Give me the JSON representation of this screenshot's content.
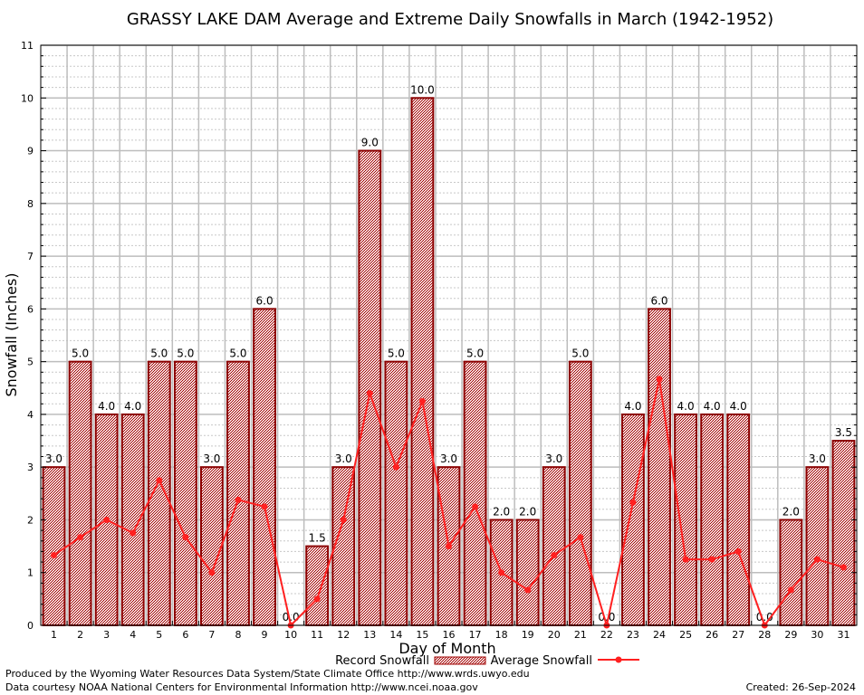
{
  "chart_data": {
    "type": "bar",
    "title": "GRASSY LAKE DAM Average and Extreme Daily Snowfalls in March (1942-1952)",
    "xlabel": "Day of Month",
    "ylabel": "Snowfall (Inches)",
    "ylim": [
      0,
      11
    ],
    "yticks": [
      "0",
      "1",
      "2",
      "3",
      "4",
      "5",
      "6",
      "7",
      "8",
      "9",
      "10",
      "11"
    ],
    "grid": true,
    "legend_placement": "bottom",
    "categories": [
      "1",
      "2",
      "3",
      "4",
      "5",
      "6",
      "7",
      "8",
      "9",
      "10",
      "11",
      "12",
      "13",
      "14",
      "15",
      "16",
      "17",
      "18",
      "19",
      "20",
      "21",
      "22",
      "23",
      "24",
      "25",
      "26",
      "27",
      "28",
      "29",
      "30",
      "31"
    ],
    "series": [
      {
        "name": "Record Snowfall",
        "kind": "bar",
        "color": "#b00000",
        "values": [
          3.0,
          5.0,
          4.0,
          4.0,
          5.0,
          5.0,
          3.0,
          5.0,
          6.0,
          0.0,
          1.5,
          3.0,
          9.0,
          5.0,
          10.0,
          3.0,
          5.0,
          2.0,
          2.0,
          3.0,
          5.0,
          0.0,
          4.0,
          6.0,
          4.0,
          4.0,
          4.0,
          0.0,
          2.0,
          3.0,
          3.5
        ],
        "labels": [
          "3.0",
          "5.0",
          "4.0",
          "4.0",
          "5.0",
          "5.0",
          "3.0",
          "5.0",
          "6.0",
          "0.0",
          "1.5",
          "3.0",
          "9.0",
          "5.0",
          "10.0",
          "3.0",
          "5.0",
          "2.0",
          "2.0",
          "3.0",
          "5.0",
          "0.0",
          "4.0",
          "6.0",
          "4.0",
          "4.0",
          "4.0",
          "0.0",
          "2.0",
          "3.0",
          "3.5"
        ]
      },
      {
        "name": "Average Snowfall",
        "kind": "line",
        "color": "#ff2020",
        "values": [
          1.33,
          1.67,
          2.0,
          1.75,
          2.75,
          1.67,
          1.0,
          2.38,
          2.25,
          0.0,
          0.5,
          2.0,
          4.4,
          3.0,
          4.25,
          1.5,
          2.25,
          1.0,
          0.67,
          1.33,
          1.67,
          0.0,
          2.33,
          4.67,
          1.25,
          1.25,
          1.4,
          0.0,
          0.67,
          1.25,
          1.1
        ]
      }
    ]
  },
  "footer": {
    "line1": "Produced by the Wyoming Water Resources Data System/State Climate Office http://www.wrds.uwyo.edu",
    "line2": "Data courtesy NOAA National Centers for Environmental Information http://www.ncei.noaa.gov",
    "created": "Created: 26-Sep-2024"
  }
}
